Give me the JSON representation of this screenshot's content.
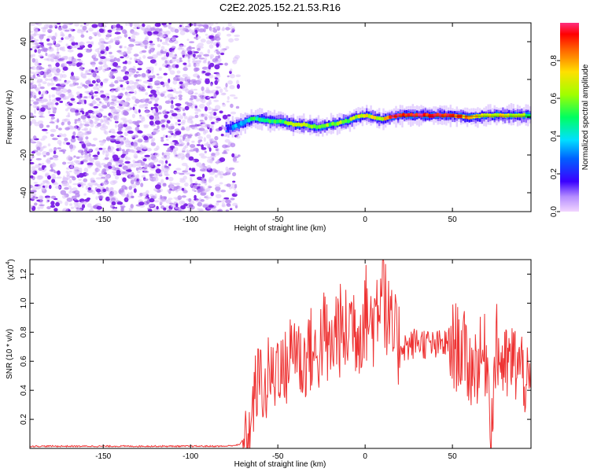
{
  "page": {
    "title": "C2E2.2025.152.21.53.R16"
  },
  "colors": {
    "snr_line": "#ee3333",
    "scatter_purple": "#8a2be2",
    "axis": "#000000"
  },
  "chart_data": [
    {
      "type": "heatmap",
      "xlabel": "Height of straight line (km)",
      "ylabel": "Frequency (Hz)",
      "xlim": [
        -192,
        95
      ],
      "ylim": [
        -50,
        50
      ],
      "xticks": [
        -150,
        -100,
        -50,
        0,
        50
      ],
      "yticks": [
        -40,
        -20,
        0,
        20,
        40
      ],
      "colorbar": {
        "label": "Normalized spectral amplitude",
        "range": [
          0,
          1
        ],
        "ticks": [
          "0.0",
          "0.2",
          "0.4",
          "0.6",
          "0.8"
        ],
        "colormap": "rainbow (magenta at 0 → violet → blue → cyan → green → yellow → red at 1)"
      },
      "noise_region": {
        "x_range": [
          -192,
          -72
        ],
        "freq_range": [
          -50,
          50
        ],
        "amplitude": "low (0.0–0.15)"
      },
      "ridge": {
        "x": [
          -80,
          -75,
          -70,
          -65,
          -60,
          -55,
          -50,
          -45,
          -40,
          -35,
          -30,
          -25,
          -20,
          -15,
          -10,
          -5,
          0,
          5,
          10,
          15,
          20,
          30,
          40,
          50,
          60,
          70,
          80,
          90,
          95
        ],
        "freq": [
          -6,
          -5,
          -3,
          -1,
          -1,
          -2,
          -2,
          -3,
          -4,
          -4,
          -5,
          -5,
          -4,
          -3,
          -2,
          0,
          1,
          0,
          -1,
          0,
          1,
          1,
          1,
          1,
          0,
          1,
          1,
          1,
          1
        ],
        "peak_amplitude": [
          0.15,
          0.3,
          0.4,
          0.45,
          0.5,
          0.5,
          0.55,
          0.55,
          0.6,
          0.6,
          0.6,
          0.6,
          0.6,
          0.6,
          0.6,
          0.65,
          0.7,
          0.7,
          0.7,
          0.95,
          0.95,
          0.95,
          0.95,
          0.9,
          0.75,
          0.7,
          0.7,
          0.6,
          0.5
        ]
      }
    },
    {
      "type": "line",
      "xlabel": "Height of straight line (km)",
      "ylabel": "SNR (10 * v/v)",
      "y_scale_label": "(x10",
      "y_scale_exponent": "4",
      "xlim": [
        -192,
        95
      ],
      "ylim": [
        0,
        1.3
      ],
      "xticks": [
        -150,
        -100,
        -50,
        0,
        50
      ],
      "yticks": [
        "0.2",
        "0.4",
        "0.6",
        "0.8",
        "1.0",
        "1.2"
      ],
      "series": [
        {
          "x": [
            -192,
            -180,
            -160,
            -140,
            -120,
            -100,
            -90,
            -80,
            -72,
            -66,
            -63,
            -60,
            -57,
            -55,
            -52,
            -50,
            -47,
            -44,
            -40,
            -36,
            -32,
            -28,
            -24,
            -20,
            -16,
            -12,
            -8,
            -4,
            0,
            4,
            8,
            10,
            12,
            16,
            20,
            25,
            30,
            35,
            40,
            45,
            50,
            55,
            60,
            65,
            70,
            72,
            75,
            80,
            85,
            90,
            95
          ],
          "values": [
            0.01,
            0.01,
            0.01,
            0.01,
            0.01,
            0.01,
            0.01,
            0.01,
            0.02,
            0.12,
            0.4,
            0.5,
            0.35,
            0.55,
            0.45,
            0.65,
            0.5,
            0.6,
            0.75,
            0.55,
            0.7,
            0.6,
            0.8,
            0.65,
            0.85,
            0.75,
            0.9,
            0.8,
            0.95,
            0.85,
            1.05,
            1.3,
            0.9,
            0.75,
            0.72,
            0.7,
            0.74,
            0.72,
            0.7,
            0.72,
            0.7,
            0.7,
            0.55,
            0.6,
            0.65,
            0.1,
            0.7,
            0.55,
            0.6,
            0.55,
            0.35
          ]
        }
      ]
    }
  ]
}
